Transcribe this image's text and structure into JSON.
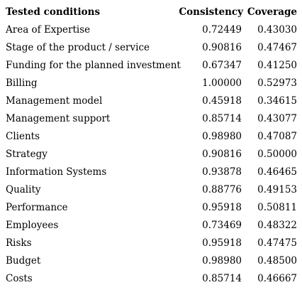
{
  "headers": {
    "condition": "Tested conditions",
    "consistency": "Consistency",
    "coverage": "Coverage"
  },
  "rows": [
    {
      "condition": "Area of Expertise",
      "consistency": "0.72449",
      "coverage": "0.43030"
    },
    {
      "condition": "Stage of the product / service",
      "consistency": "0.90816",
      "coverage": "0.47467"
    },
    {
      "condition": "Funding for the planned investment",
      "consistency": "0.67347",
      "coverage": "0.41250"
    },
    {
      "condition": "Billing",
      "consistency": "1.00000",
      "coverage": "0.52973"
    },
    {
      "condition": "Management model",
      "consistency": "0.45918",
      "coverage": "0.34615"
    },
    {
      "condition": "Management support",
      "consistency": "0.85714",
      "coverage": "0.43077"
    },
    {
      "condition": "Clients",
      "consistency": "0.98980",
      "coverage": "0.47087"
    },
    {
      "condition": "Strategy",
      "consistency": "0.90816",
      "coverage": "0.50000"
    },
    {
      "condition": "Information Systems",
      "consistency": "0.93878",
      "coverage": "0.46465"
    },
    {
      "condition": "Quality",
      "consistency": "0.88776",
      "coverage": "0.49153"
    },
    {
      "condition": "Performance",
      "consistency": "0.95918",
      "coverage": "0.50811"
    },
    {
      "condition": "Employees",
      "consistency": "0.73469",
      "coverage": "0.48322"
    },
    {
      "condition": "Risks",
      "consistency": "0.95918",
      "coverage": "0.47475"
    },
    {
      "condition": "Budget",
      "consistency": "0.98980",
      "coverage": "0.48500"
    },
    {
      "condition": "Costs",
      "consistency": "0.85714",
      "coverage": "0.46667"
    }
  ]
}
